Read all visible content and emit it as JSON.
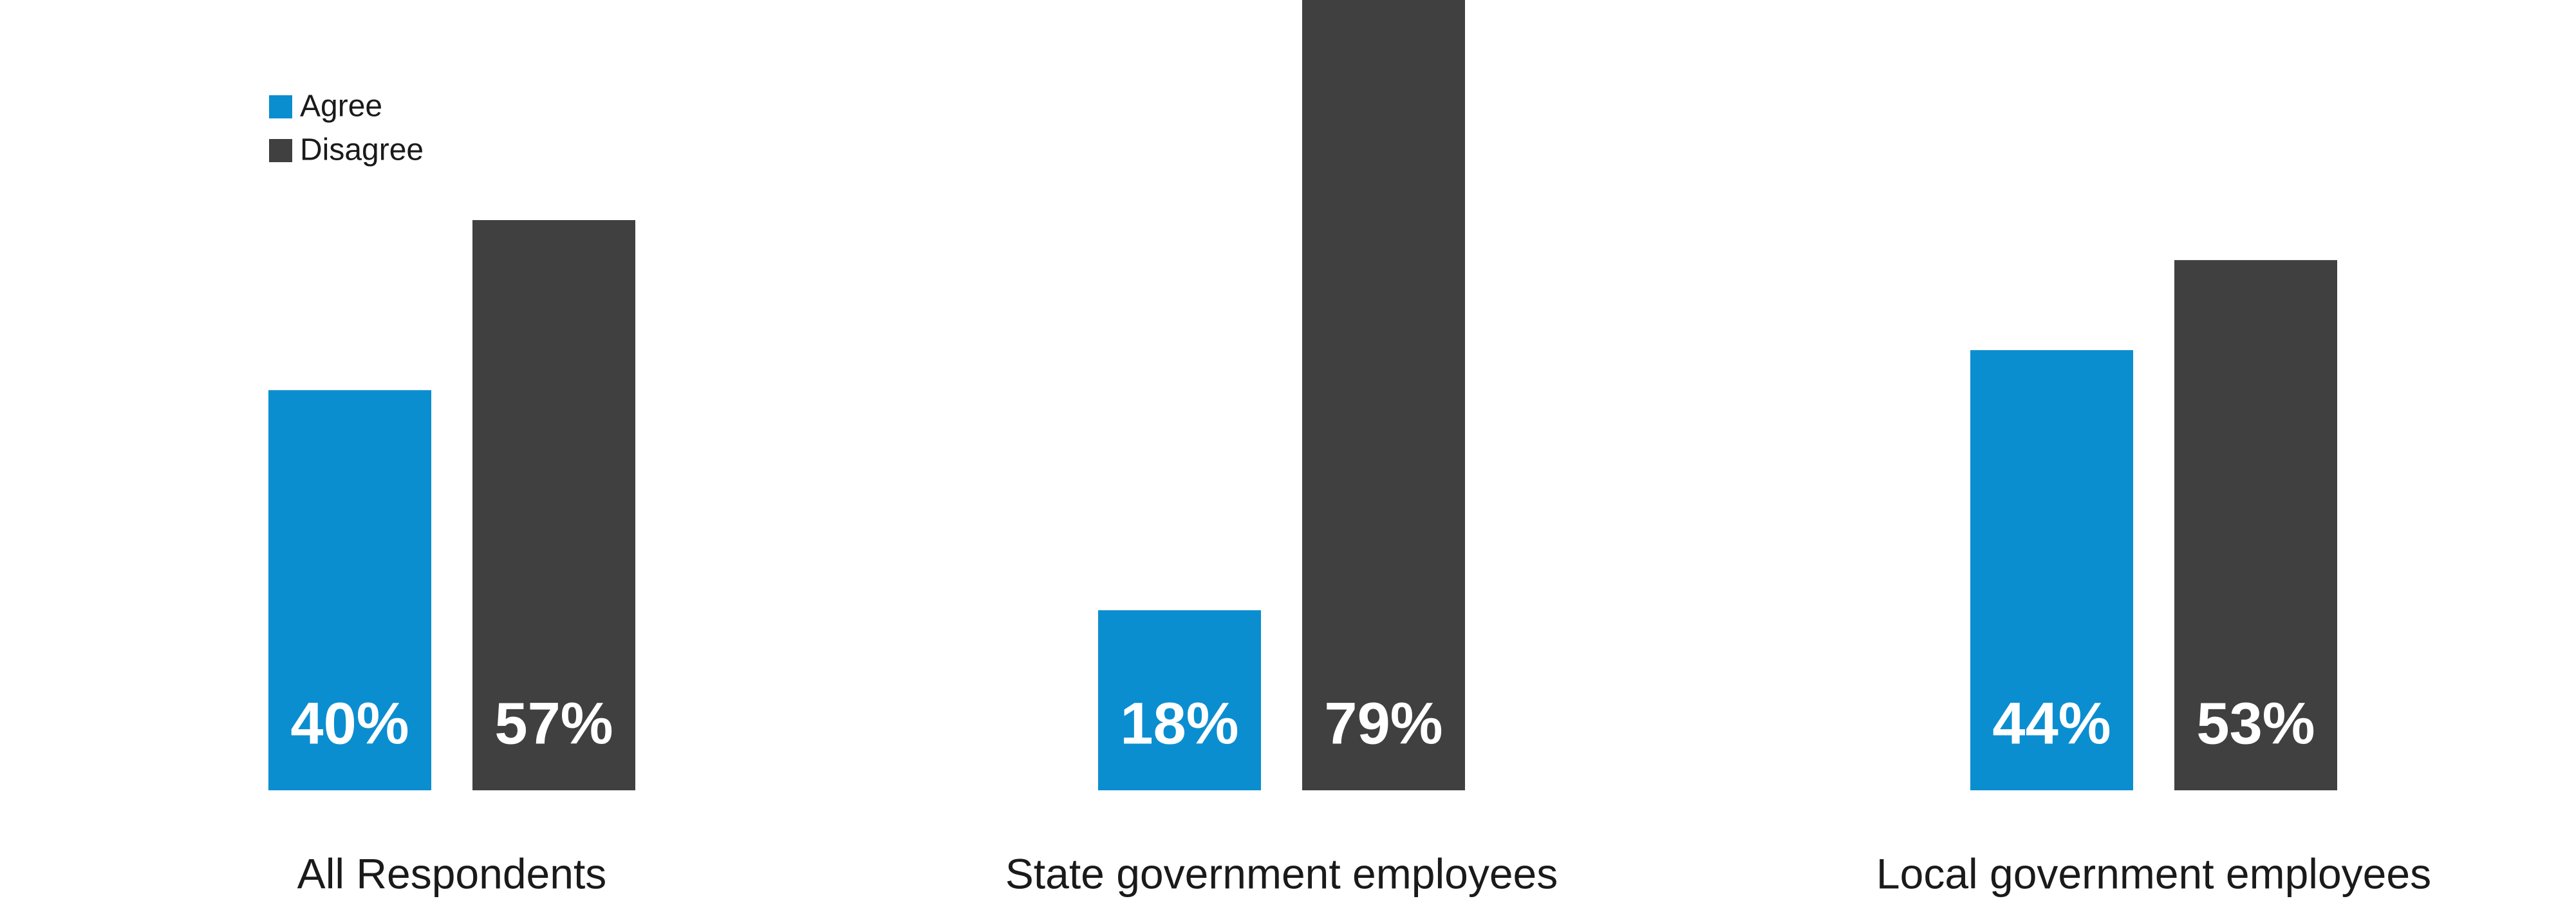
{
  "chart_data": {
    "type": "bar",
    "categories": [
      "All Respondents",
      "State government employees",
      "Local government employees"
    ],
    "series": [
      {
        "name": "Agree",
        "color": "#0b8ed0",
        "values": [
          40,
          18,
          44
        ],
        "value_labels": [
          "40%",
          "18%",
          "44%"
        ]
      },
      {
        "name": "Disagree",
        "color": "#404040",
        "values": [
          57,
          79,
          53
        ],
        "value_labels": [
          "57%",
          "79%",
          "53%"
        ]
      }
    ],
    "ylim": [
      0,
      79
    ],
    "legend": "upper left"
  }
}
